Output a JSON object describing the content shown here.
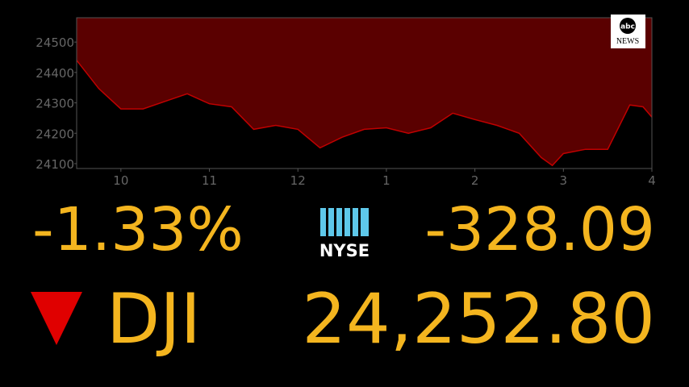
{
  "chart_data": {
    "type": "area",
    "x": [
      9.5,
      9.75,
      10,
      10.25,
      10.5,
      10.75,
      11,
      11.25,
      11.5,
      11.75,
      12,
      12.25,
      12.5,
      12.75,
      13,
      13.25,
      13.5,
      13.75,
      14,
      14.25,
      14.5,
      14.75,
      14.875,
      15,
      15.25,
      15.5,
      15.75,
      15.9,
      16
    ],
    "values": [
      24440,
      24347,
      24280,
      24280,
      24305,
      24330,
      24297,
      24287,
      24213,
      24226,
      24213,
      24152,
      24187,
      24213,
      24218,
      24200,
      24218,
      24266,
      24245,
      24226,
      24200,
      24120,
      24094,
      24133,
      24147,
      24147,
      24293,
      24287,
      24253
    ],
    "color": "#c00000",
    "fill": "#5a0000",
    "xlim": [
      9.5,
      16
    ],
    "xticks": [
      10,
      11,
      12,
      {
        "value": 13,
        "label": "1"
      },
      {
        "value": 14,
        "label": "2"
      },
      {
        "value": 15,
        "label": "3"
      },
      {
        "value": 16,
        "label": "4"
      }
    ],
    "ylim": [
      24084,
      24580
    ],
    "yticks": [
      24100,
      24200,
      24300,
      24400,
      24500
    ]
  },
  "ticker": {
    "percent_change": "-1.33%",
    "exchange": "NYSE",
    "point_change": "-328.09",
    "symbol": "DJI",
    "price": "24,252.80"
  },
  "logo": {
    "top": "abc",
    "bottom": "NEWS"
  }
}
